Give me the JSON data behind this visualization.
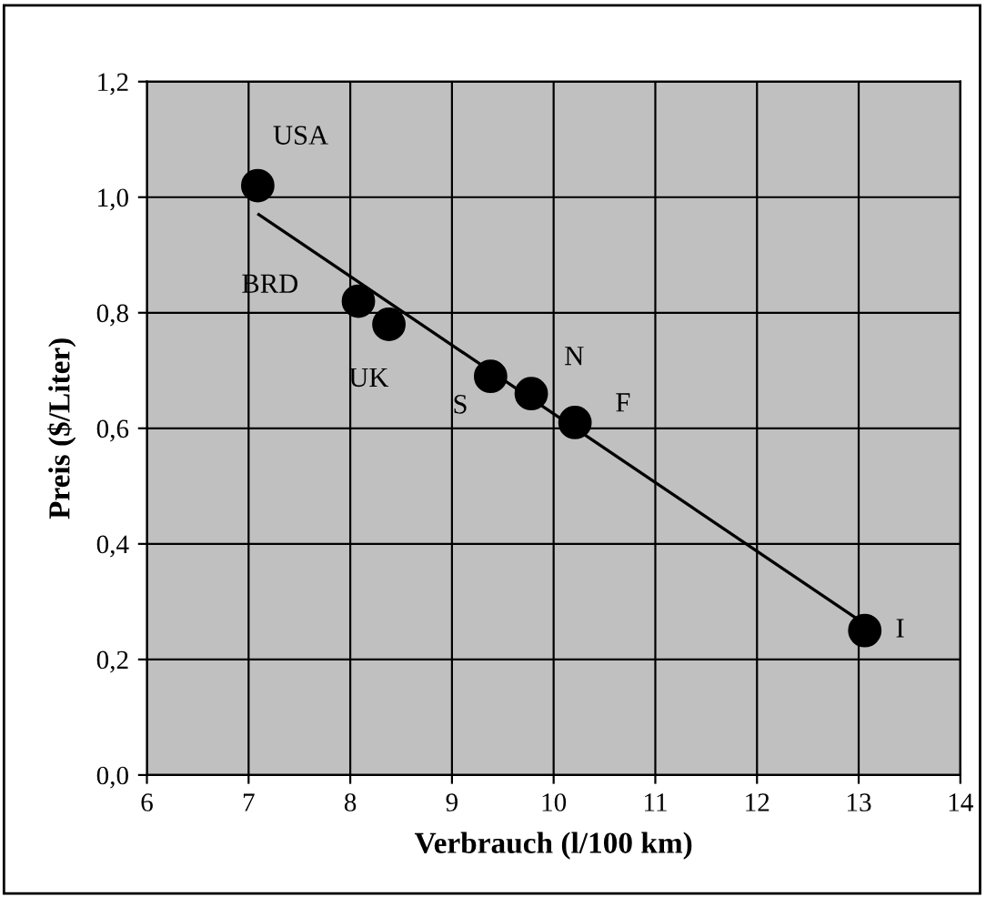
{
  "chart_data": {
    "type": "scatter",
    "xlabel": "Verbrauch (l/100 km)",
    "ylabel": "Preis ($/Liter)",
    "xlim": [
      6,
      14
    ],
    "xticks": [
      6,
      7,
      8,
      9,
      10,
      11,
      12,
      13,
      14
    ],
    "ylim": [
      0,
      1.2
    ],
    "yticks": [
      {
        "value": 0,
        "label": "0,0"
      },
      {
        "value": 0.2,
        "label": "0,2"
      },
      {
        "value": 0.4,
        "label": "0,4"
      },
      {
        "value": 0.6,
        "label": "0,6"
      },
      {
        "value": 0.8,
        "label": "0,8"
      },
      {
        "value": 1.0,
        "label": "1,0"
      },
      {
        "value": 1.2,
        "label": "1,2"
      }
    ],
    "grid": true,
    "legend": false,
    "series": [
      {
        "color": "#000000",
        "marker": "circle",
        "x": [
          7.09,
          8.08,
          8.38,
          9.38,
          9.78,
          10.21,
          13.06
        ],
        "values": [
          1.02,
          0.82,
          0.78,
          0.69,
          0.66,
          0.61,
          0.25
        ]
      },
      {
        "type": "line",
        "color": "#000000",
        "marker": "none",
        "line_style": "solid",
        "x": [
          7.1,
          13.07
        ],
        "values": [
          0.97,
          0.26
        ]
      }
    ],
    "annotations": [
      {
        "text": "USA",
        "x": 7.09,
        "y": 1.02
      },
      {
        "text": "BRD",
        "x": 8.08,
        "y": 0.82
      },
      {
        "text": "UK",
        "x": 8.38,
        "y": 0.78
      },
      {
        "text": "S",
        "x": 9.38,
        "y": 0.69
      },
      {
        "text": "N",
        "x": 9.78,
        "y": 0.66
      },
      {
        "text": "F",
        "x": 10.21,
        "y": 0.61
      },
      {
        "text": "I",
        "x": 13.06,
        "y": 0.25
      }
    ]
  }
}
